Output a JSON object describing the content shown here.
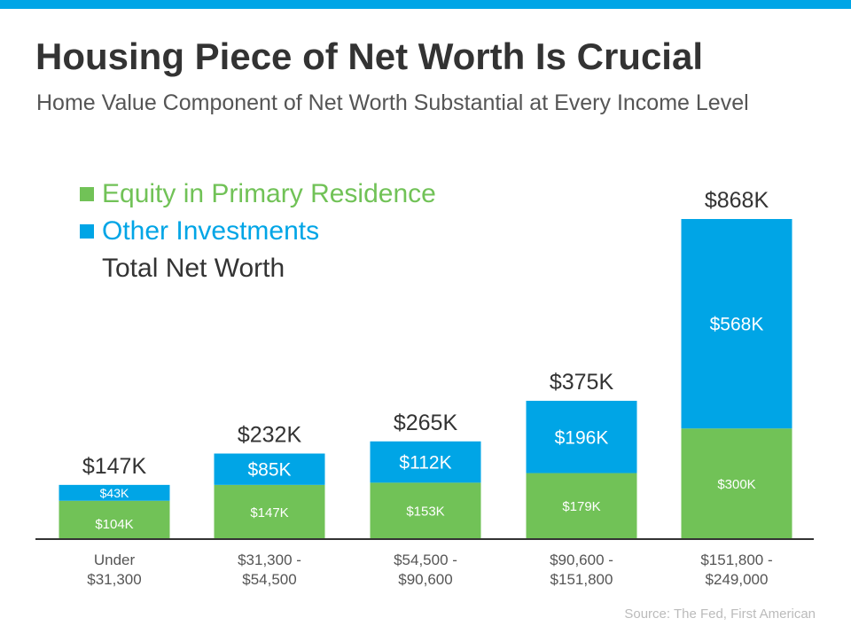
{
  "colors": {
    "equity": "#71c257",
    "other": "#00a5e6",
    "top_bar": "#00a5e6",
    "axis": "#333333",
    "text": "#333333",
    "tick_text": "#555555"
  },
  "chart_data": {
    "type": "bar",
    "stacked": true,
    "title": "Housing Piece of Net Worth Is Crucial",
    "subtitle": "Home Value Component of Net Worth Substantial at Every Income Level",
    "source": "Source: The Fed, First American",
    "legend": {
      "placement": "top-left",
      "entries": [
        "Equity in Primary Residence",
        "Other Investments",
        "Total Net Worth"
      ]
    },
    "categories": [
      [
        "Under",
        "$31,300"
      ],
      [
        "$31,300 -",
        "$54,500"
      ],
      [
        "$54,500 -",
        "$90,600"
      ],
      [
        "$90,600 -",
        "$151,800"
      ],
      [
        "$151,800 -",
        "$249,000"
      ]
    ],
    "series": [
      {
        "name": "Equity in Primary Residence",
        "values": [
          104,
          147,
          153,
          179,
          300
        ],
        "labels": [
          "$104K",
          "$147K",
          "$153K",
          "$179K",
          "$300K"
        ]
      },
      {
        "name": "Other Investments",
        "values": [
          43,
          85,
          112,
          196,
          568
        ],
        "labels": [
          "$43K",
          "$85K",
          "$112K",
          "$196K",
          "$568K"
        ]
      }
    ],
    "totals": {
      "name": "Total Net Worth",
      "values": [
        147,
        232,
        265,
        375,
        868
      ],
      "labels": [
        "$147K",
        "$232K",
        "$265K",
        "$375K",
        "$868K"
      ]
    },
    "ylim": [
      0,
      868
    ],
    "grid": false,
    "y_axis_visible": false
  }
}
